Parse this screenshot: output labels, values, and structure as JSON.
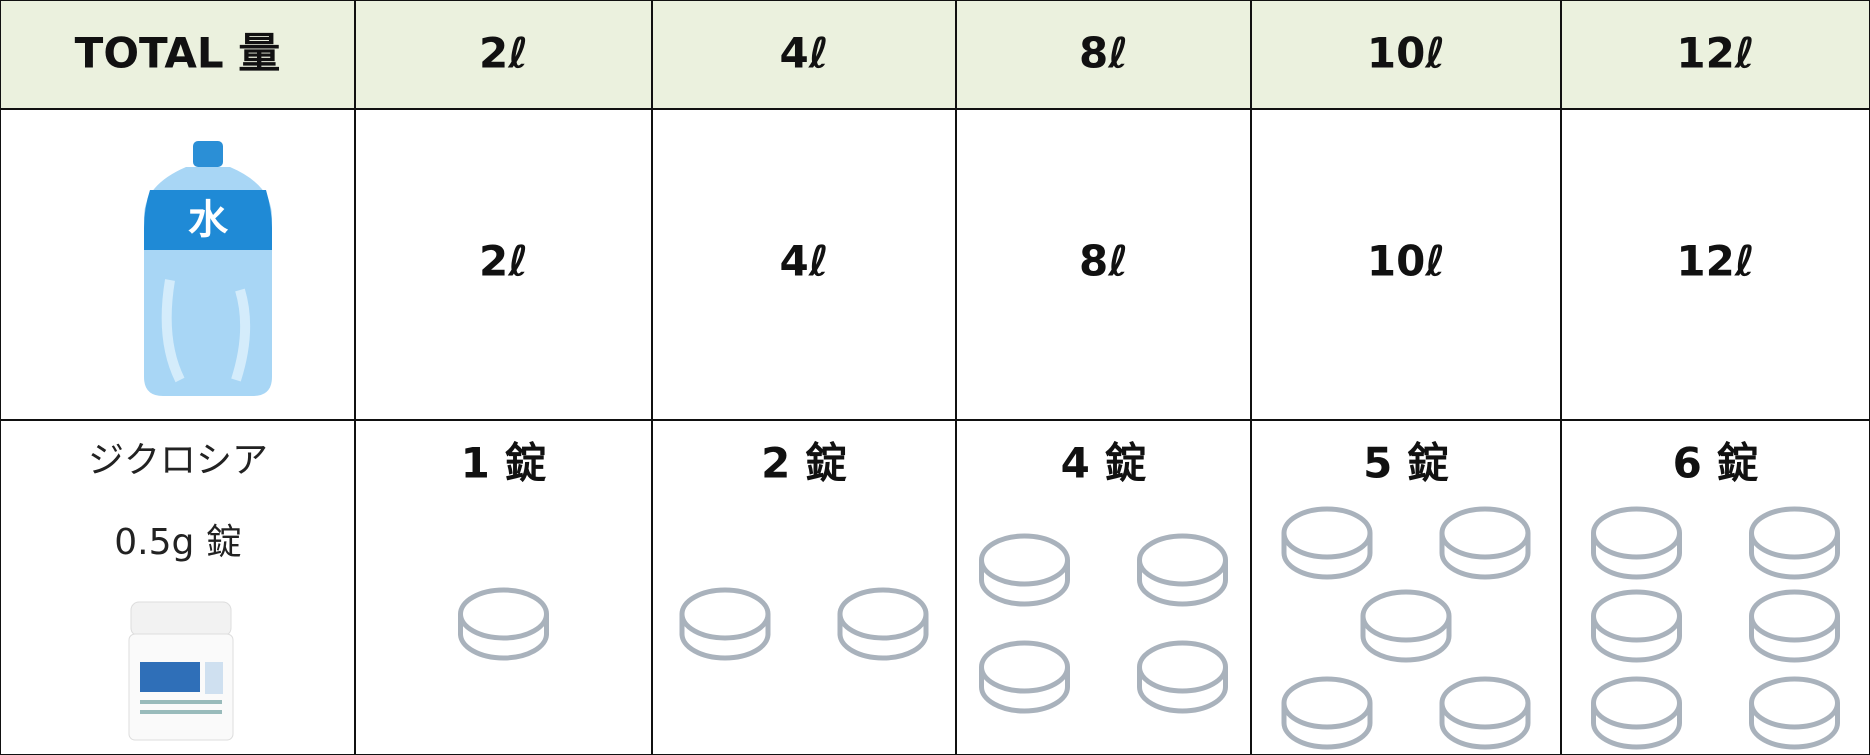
{
  "header": {
    "cells": [
      "TOTAL 量",
      "2ℓ",
      "4ℓ",
      "8ℓ",
      "10ℓ",
      "12ℓ"
    ]
  },
  "water_row": {
    "icon_label": "水",
    "cells": [
      "2ℓ",
      "4ℓ",
      "8ℓ",
      "10ℓ",
      "12ℓ"
    ]
  },
  "tablet_row": {
    "label_lines": [
      "ジクロシア",
      "0.5g 錠"
    ],
    "cells": [
      "1 錠",
      "2 錠",
      "4 錠",
      "5 錠",
      "6 錠"
    ],
    "tablets": [
      1,
      2,
      4,
      5,
      6
    ]
  }
}
